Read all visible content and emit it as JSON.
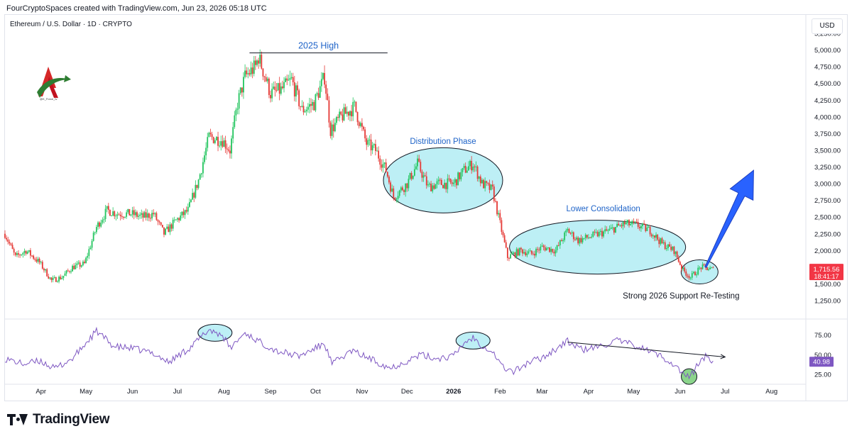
{
  "header": {
    "credit": "FourCryptoSpaces created with TradingView.com, Jun 23, 2026 05:18 UTC",
    "symbol": "Ethereum / U.S. Dollar · 1D · CRYPTO",
    "currency": "USD"
  },
  "brand": {
    "caption": "@K_Force_tv"
  },
  "footer": {
    "watermark": "TradingView"
  },
  "colors": {
    "up": "#22c55e",
    "down": "#e53935",
    "rsi": "#7e57c2",
    "annotation": "#1e63c8",
    "ellipse_fill": "#bdeff5",
    "arrow": "#2962ff",
    "price_tag": "#f23645"
  },
  "chart_data": [
    {
      "type": "candlestick",
      "name": "Ethereum / U.S. Dollar",
      "x_labels": [
        "Apr",
        "May",
        "Jun",
        "Jul",
        "Aug",
        "Sep",
        "Oct",
        "Nov",
        "Dec",
        "2026",
        "Feb",
        "Mar",
        "Apr",
        "May",
        "Jun",
        "Jul",
        "Aug"
      ],
      "x_label_dates": [
        "2025-04-01",
        "2025-05-01",
        "2025-06-01",
        "2025-07-01",
        "2025-08-01",
        "2025-09-01",
        "2025-10-01",
        "2025-11-01",
        "2025-12-01",
        "2026-01-01",
        "2026-02-01",
        "2026-03-01",
        "2026-04-01",
        "2026-05-01",
        "2026-06-01",
        "2026-07-01",
        "2026-08-01"
      ],
      "y_ticks": [
        "1,250.00",
        "1,500.00",
        "1,750.00",
        "2,000.00",
        "2,250.00",
        "2,500.00",
        "2,750.00",
        "3,000.00",
        "3,250.00",
        "3,500.00",
        "3,750.00",
        "4,000.00",
        "4,250.00",
        "4,500.00",
        "4,750.00",
        "5,000.00",
        "5,250.00"
      ],
      "y_range": [
        1250,
        5250
      ],
      "close_path": [
        [
          "2025-03-08",
          2250
        ],
        [
          "2025-03-15",
          1900
        ],
        [
          "2025-03-22",
          2000
        ],
        [
          "2025-03-31",
          1820
        ],
        [
          "2025-04-08",
          1550
        ],
        [
          "2025-04-15",
          1600
        ],
        [
          "2025-04-22",
          1750
        ],
        [
          "2025-04-30",
          1800
        ],
        [
          "2025-05-08",
          2350
        ],
        [
          "2025-05-15",
          2600
        ],
        [
          "2025-05-22",
          2550
        ],
        [
          "2025-05-31",
          2550
        ],
        [
          "2025-06-08",
          2500
        ],
        [
          "2025-06-15",
          2550
        ],
        [
          "2025-06-22",
          2250
        ],
        [
          "2025-06-30",
          2450
        ],
        [
          "2025-07-08",
          2600
        ],
        [
          "2025-07-15",
          3050
        ],
        [
          "2025-07-22",
          3700
        ],
        [
          "2025-07-31",
          3650
        ],
        [
          "2025-08-05",
          3500
        ],
        [
          "2025-08-10",
          4200
        ],
        [
          "2025-08-15",
          4600
        ],
        [
          "2025-08-22",
          4750
        ],
        [
          "2025-08-24",
          4900
        ],
        [
          "2025-09-01",
          4350
        ],
        [
          "2025-09-08",
          4400
        ],
        [
          "2025-09-15",
          4550
        ],
        [
          "2025-09-22",
          4100
        ],
        [
          "2025-09-30",
          4200
        ],
        [
          "2025-10-07",
          4600
        ],
        [
          "2025-10-11",
          3800
        ],
        [
          "2025-10-18",
          4000
        ],
        [
          "2025-10-27",
          4150
        ],
        [
          "2025-11-04",
          3600
        ],
        [
          "2025-11-10",
          3500
        ],
        [
          "2025-11-17",
          3200
        ],
        [
          "2025-11-22",
          2800
        ],
        [
          "2025-12-01",
          3000
        ],
        [
          "2025-12-08",
          3300
        ],
        [
          "2025-12-15",
          2950
        ],
        [
          "2025-12-22",
          3000
        ],
        [
          "2026-01-01",
          3000
        ],
        [
          "2026-01-08",
          3200
        ],
        [
          "2026-01-14",
          3300
        ],
        [
          "2026-01-20",
          3000
        ],
        [
          "2026-01-27",
          2900
        ],
        [
          "2026-02-01",
          2400
        ],
        [
          "2026-02-06",
          1900
        ],
        [
          "2026-02-15",
          2000
        ],
        [
          "2026-02-22",
          1950
        ],
        [
          "2026-03-01",
          2050
        ],
        [
          "2026-03-10",
          2000
        ],
        [
          "2026-03-18",
          2300
        ],
        [
          "2026-03-25",
          2150
        ],
        [
          "2026-04-01",
          2200
        ],
        [
          "2026-04-15",
          2300
        ],
        [
          "2026-04-25",
          2400
        ],
        [
          "2026-05-03",
          2380
        ],
        [
          "2026-05-12",
          2300
        ],
        [
          "2026-05-20",
          2100
        ],
        [
          "2026-05-28",
          2000
        ],
        [
          "2026-06-03",
          1700
        ],
        [
          "2026-06-08",
          1600
        ],
        [
          "2026-06-15",
          1750
        ],
        [
          "2026-06-23",
          1715
        ]
      ],
      "last_price": "1,715.56",
      "countdown": "18:41:17",
      "annotations": [
        {
          "text": "2025 High",
          "type": "horizontal-line",
          "date_range": [
            "2025-08-18",
            "2025-11-18"
          ],
          "value": 5000
        },
        {
          "text": "Distribution Phase",
          "type": "ellipse",
          "center": [
            "2025-12-25",
            3050
          ]
        },
        {
          "text": "Lower Consolidation",
          "type": "ellipse",
          "center": [
            "2026-04-07",
            2050
          ]
        },
        {
          "text": "Strong 2026 Support Re-Testing",
          "type": "ellipse",
          "center": [
            "2026-06-14",
            1680
          ]
        },
        {
          "type": "arrow",
          "from": [
            "2026-06-18",
            1750
          ],
          "to": [
            "2026-07-20",
            3200
          ]
        }
      ]
    },
    {
      "type": "line",
      "name": "RSI",
      "y_ticks": [
        "25.00",
        "50.00",
        "75.00"
      ],
      "y_range": [
        14,
        91
      ],
      "last_value": "40.98",
      "path": [
        [
          "2025-03-08",
          45
        ],
        [
          "2025-03-20",
          38
        ],
        [
          "2025-04-01",
          42
        ],
        [
          "2025-04-10",
          32
        ],
        [
          "2025-04-22",
          45
        ],
        [
          "2025-05-08",
          80
        ],
        [
          "2025-05-20",
          60
        ],
        [
          "2025-06-01",
          58
        ],
        [
          "2025-06-15",
          52
        ],
        [
          "2025-06-25",
          40
        ],
        [
          "2025-07-10",
          60
        ],
        [
          "2025-07-22",
          82
        ],
        [
          "2025-07-31",
          75
        ],
        [
          "2025-08-05",
          58
        ],
        [
          "2025-08-15",
          78
        ],
        [
          "2025-08-25",
          66
        ],
        [
          "2025-09-05",
          55
        ],
        [
          "2025-09-20",
          48
        ],
        [
          "2025-10-07",
          64
        ],
        [
          "2025-10-12",
          38
        ],
        [
          "2025-10-25",
          55
        ],
        [
          "2025-11-05",
          46
        ],
        [
          "2025-11-20",
          33
        ],
        [
          "2025-12-01",
          42
        ],
        [
          "2025-12-10",
          50
        ],
        [
          "2025-12-20",
          45
        ],
        [
          "2026-01-01",
          48
        ],
        [
          "2026-01-08",
          65
        ],
        [
          "2026-01-14",
          72
        ],
        [
          "2026-01-20",
          62
        ],
        [
          "2026-01-27",
          54
        ],
        [
          "2026-02-03",
          34
        ],
        [
          "2026-02-10",
          28
        ],
        [
          "2026-02-20",
          40
        ],
        [
          "2026-03-01",
          46
        ],
        [
          "2026-03-18",
          67
        ],
        [
          "2026-03-28",
          56
        ],
        [
          "2026-04-08",
          60
        ],
        [
          "2026-04-20",
          68
        ],
        [
          "2026-05-03",
          61
        ],
        [
          "2026-05-15",
          52
        ],
        [
          "2026-05-25",
          42
        ],
        [
          "2026-06-03",
          26
        ],
        [
          "2026-06-07",
          20
        ],
        [
          "2026-06-13",
          38
        ],
        [
          "2026-06-18",
          48
        ],
        [
          "2026-06-23",
          41
        ]
      ],
      "trendline": {
        "from": [
          "2026-03-18",
          66
        ],
        "to": [
          "2026-07-01",
          47
        ]
      },
      "highlights": [
        {
          "date": "2025-07-26",
          "value": 78,
          "kind": "overbought"
        },
        {
          "date": "2026-01-14",
          "value": 68,
          "kind": "overbought"
        },
        {
          "date": "2026-06-07",
          "value": 22,
          "kind": "oversold"
        }
      ]
    }
  ]
}
